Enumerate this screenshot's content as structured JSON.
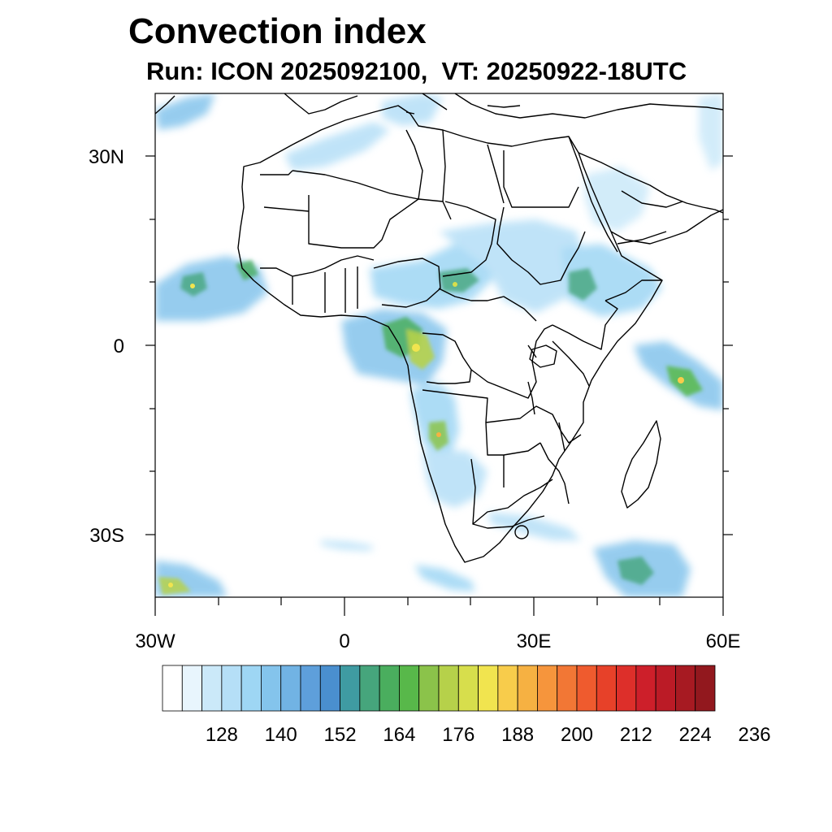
{
  "title": "Convection index",
  "subtitle": "Run: ICON 2025092100,  VT: 20250922-18UTC",
  "map": {
    "region": "Africa",
    "projection": "equirectangular",
    "lon_range": [
      -30,
      60
    ],
    "lat_range": [
      -40,
      40
    ],
    "lat_labels": [
      {
        "lat": 30,
        "text": "30N"
      },
      {
        "lat": 0,
        "text": "0"
      },
      {
        "lat": -30,
        "text": "30S"
      }
    ],
    "lon_labels": [
      {
        "lon": -30,
        "text": "30W"
      },
      {
        "lon": 0,
        "text": "0"
      },
      {
        "lon": 30,
        "text": "30E"
      },
      {
        "lon": 60,
        "text": "60E"
      }
    ]
  },
  "colorbar": {
    "colors": [
      "#ffffff",
      "#e8f5fd",
      "#cbe9f9",
      "#b5dff7",
      "#9ed6f4",
      "#84c4ec",
      "#71b3e4",
      "#5e9fdb",
      "#4a8fcf",
      "#3f9ba2",
      "#46a57c",
      "#4aae5e",
      "#58b84a",
      "#8bc34a",
      "#b6d14a",
      "#d7de4c",
      "#f1e44f",
      "#f8cc4b",
      "#f6b142",
      "#f6953c",
      "#f27735",
      "#ef5b2e",
      "#e74129",
      "#dd2f2a",
      "#cd1f2a",
      "#bb1b26",
      "#a71a22",
      "#92181e"
    ],
    "labels": [
      "128",
      "140",
      "152",
      "164",
      "176",
      "188",
      "200",
      "212",
      "224",
      "236"
    ]
  }
}
